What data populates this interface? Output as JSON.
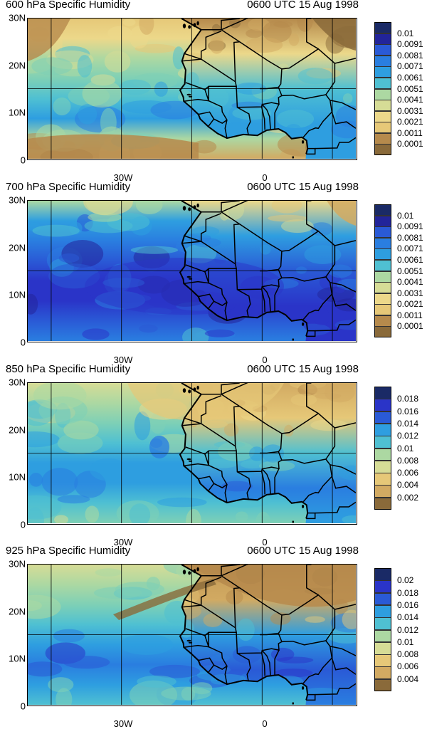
{
  "palette": [
    "#8a6a3a",
    "#b68a4c",
    "#d2aa62",
    "#e6c878",
    "#ecd88a",
    "#d6dc96",
    "#acd8a2",
    "#7ed0b6",
    "#4fc0d2",
    "#2e9ee0",
    "#2a7ee0",
    "#2a5ad6",
    "#2a34c8",
    "#22249a",
    "#1a2a66"
  ],
  "panels": [
    {
      "id": "p600",
      "title_left": "600 hPa Specific Humidity",
      "title_right": "0600 UTC 15 Aug 1998",
      "lat_labels": [
        "30N",
        "20N",
        "10N",
        "0"
      ],
      "lon_labels": [
        "30W",
        "0"
      ],
      "colorbar_labels": [
        "0.01",
        "0.0091",
        "0.0081",
        "0.0071",
        "0.0061",
        "0.0051",
        "0.0041",
        "0.0031",
        "0.0021",
        "0.0011",
        "0.0001"
      ],
      "levels": [
        0.0001,
        0.0011,
        0.0021,
        0.0031,
        0.0041,
        0.0051,
        0.0061,
        0.0071,
        0.0081,
        0.0091,
        0.01
      ],
      "field_base": 0.56
    },
    {
      "id": "p700",
      "title_left": "700 hPa Specific Humidity",
      "title_right": "0600 UTC 15 Aug 1998",
      "lat_labels": [
        "30N",
        "20N",
        "10N",
        "0"
      ],
      "lon_labels": [
        "30W",
        "0"
      ],
      "colorbar_labels": [
        "0.01",
        "0.0091",
        "0.0081",
        "0.0071",
        "0.0061",
        "0.0051",
        "0.0041",
        "0.0031",
        "0.0021",
        "0.0011",
        "0.0001"
      ],
      "levels": [
        0.0001,
        0.0011,
        0.0021,
        0.0031,
        0.0041,
        0.0051,
        0.0061,
        0.0071,
        0.0081,
        0.0091,
        0.01
      ],
      "field_base": 0.74
    },
    {
      "id": "p850",
      "title_left": "850 hPa Specific Humidity",
      "title_right": "0600 UTC 15 Aug 1998",
      "lat_labels": [
        "30N",
        "20N",
        "10N",
        "0"
      ],
      "lon_labels": [
        "30W",
        "0"
      ],
      "colorbar_labels": [
        "0.018",
        "0.016",
        "0.014",
        "0.012",
        "0.01",
        "0.008",
        "0.006",
        "0.004",
        "0.002"
      ],
      "levels": [
        0.002,
        0.004,
        0.006,
        0.008,
        0.01,
        0.012,
        0.014,
        0.016,
        0.018
      ],
      "field_base": 0.52
    },
    {
      "id": "p925",
      "title_left": "925 hPa Specific Humidity",
      "title_right": "0600 UTC 15 Aug 1998",
      "lat_labels": [
        "30N",
        "20N",
        "10N",
        "0"
      ],
      "lon_labels": [
        "30W",
        "0"
      ],
      "colorbar_labels": [
        "0.02",
        "0.018",
        "0.016",
        "0.014",
        "0.012",
        "0.01",
        "0.008",
        "0.006",
        "0.004"
      ],
      "levels": [
        0.004,
        0.006,
        0.008,
        0.01,
        0.012,
        0.014,
        0.016,
        0.018,
        0.02
      ],
      "field_base": 0.55
    }
  ]
}
